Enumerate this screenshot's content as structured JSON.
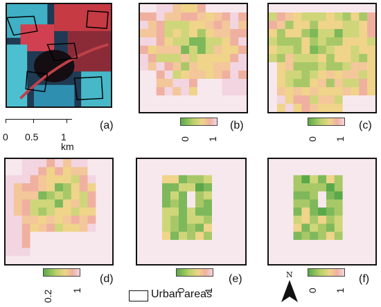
{
  "panels": {
    "a": {
      "letter": "(a)"
    },
    "b": {
      "letter": "(b)",
      "cbar_min": "0",
      "cbar_max": "1"
    },
    "c": {
      "letter": "(c)",
      "cbar_min": "0",
      "cbar_max": "1"
    },
    "d": {
      "letter": "(d)",
      "cbar_min": "0.2",
      "cbar_max": "1"
    },
    "e": {
      "letter": "(e)",
      "cbar_min": "0",
      "cbar_max": "1"
    },
    "f": {
      "letter": "(f)",
      "cbar_min": "0",
      "cbar_max": "1"
    }
  },
  "scale_bar": {
    "labels": [
      "0",
      "0.5",
      "1 km"
    ]
  },
  "legend": {
    "urban_label": "Urban areas"
  },
  "north_arrow": {
    "label": "N"
  },
  "colors": {
    "urban_fill": "#f7e8ee",
    "low": "#5aa84a",
    "mid": "#efd48a",
    "high": "#f2d5e0",
    "boundary": "#111111"
  }
}
